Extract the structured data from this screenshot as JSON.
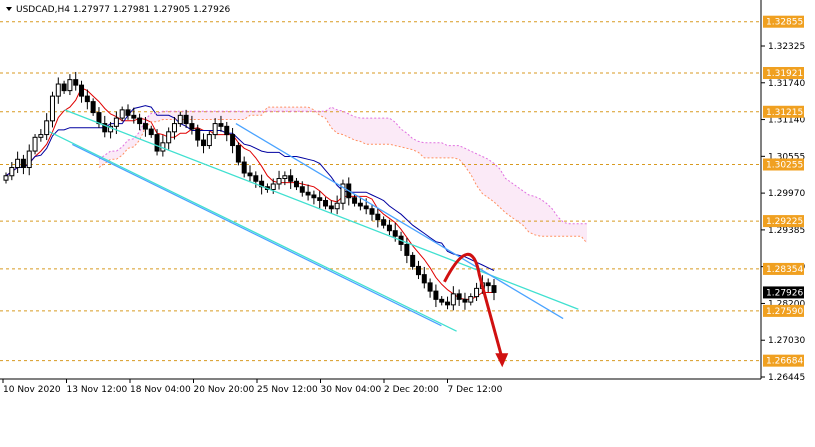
{
  "chart_data": {
    "type": "candlestick",
    "title": "USDCAD,H4  1.27977 1.27981 1.27905 1.27926",
    "symbol": "USDCAD",
    "timeframe": "H4",
    "ohlc_current": {
      "open": 1.27977,
      "high": 1.27981,
      "low": 1.27905,
      "close": 1.27926
    },
    "ylim": [
      1.2635,
      1.3325
    ],
    "y_ticks": [
      "1.32325",
      "1.31740",
      "1.31140",
      "1.30555",
      "1.29970",
      "1.29385",
      "1.28800",
      "1.28200",
      "1.27030",
      "1.26445"
    ],
    "x_ticks": [
      "10 Nov 2020",
      "13 Nov 12:00",
      "18 Nov 04:00",
      "20 Nov 20:00",
      "25 Nov 12:00",
      "30 Nov 04:00",
      "2 Dec 20:00",
      "7 Dec 12:00"
    ],
    "levels": [
      {
        "label": "1.32855",
        "value": 1.32855
      },
      {
        "label": "1.31921",
        "value": 1.31921
      },
      {
        "label": "1.31215",
        "value": 1.31215
      },
      {
        "label": "1.30255",
        "value": 1.30255
      },
      {
        "label": "1.29225",
        "value": 1.29225
      },
      {
        "label": "1.28354",
        "value": 1.28354
      },
      {
        "label": "1.27590",
        "value": 1.2759
      },
      {
        "label": "1.26684",
        "value": 1.26684
      }
    ],
    "current_price": {
      "label": "1.27926",
      "value": 1.27926
    },
    "channel_lines": [
      {
        "color": "#40e0d0",
        "from": [
          0.085,
          1.3125
        ],
        "to": [
          0.76,
          1.2762
        ]
      },
      {
        "color": "#40e0d0",
        "from": [
          0.065,
          1.3085
        ],
        "to": [
          0.6,
          1.2722
        ]
      },
      {
        "color": "#4aa3ff",
        "from": [
          0.31,
          1.31
        ],
        "to": [
          0.74,
          1.2745
        ]
      },
      {
        "color": "#4aa3ff",
        "from": [
          0.095,
          1.3062
        ],
        "to": [
          0.58,
          1.2732
        ]
      }
    ],
    "forecast_arrow": {
      "color": "#d01010",
      "points": [
        [
          0.584,
          1.2812
        ],
        [
          0.63,
          1.2842
        ],
        [
          0.66,
          1.266
        ]
      ]
    },
    "close_series": [
      1.3005,
      1.302,
      1.3035,
      1.302,
      1.305,
      1.3075,
      1.308,
      1.3105,
      1.315,
      1.3172,
      1.316,
      1.318,
      1.317,
      1.315,
      1.314,
      1.312,
      1.31,
      1.3085,
      1.3095,
      1.311,
      1.3125,
      1.3115,
      1.311,
      1.31,
      1.309,
      1.308,
      1.305,
      1.3065,
      1.3085,
      1.31,
      1.3115,
      1.31,
      1.309,
      1.307,
      1.306,
      1.308,
      1.31,
      1.3095,
      1.308,
      1.306,
      1.303,
      1.301,
      1.3005,
      1.2995,
      1.2985,
      1.298,
      1.299,
      1.3,
      1.3005,
      1.2995,
      1.2985,
      1.2975,
      1.297,
      1.2965,
      1.296,
      1.295,
      1.2945,
      1.2955,
      1.299,
      1.2965,
      1.2955,
      1.295,
      1.2945,
      1.2935,
      1.2925,
      1.2915,
      1.2905,
      1.2895,
      1.288,
      1.286,
      1.284,
      1.2825,
      1.281,
      1.2795,
      1.278,
      1.2775,
      1.277,
      1.279,
      1.278,
      1.2775,
      1.2785,
      1.28,
      1.281,
      1.2805,
      1.27926
    ],
    "series": [
      {
        "color": "#e00000"
      },
      {
        "color": "#0000a0"
      },
      {
        "color": "#ff9060"
      },
      {
        "color": "#e070e0"
      }
    ]
  }
}
